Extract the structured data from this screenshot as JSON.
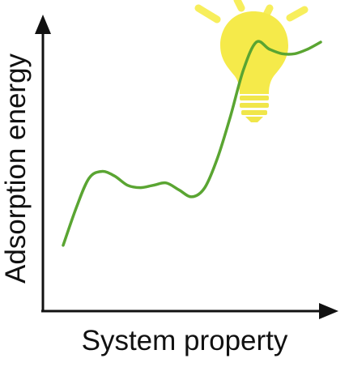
{
  "chart_data": {
    "type": "line",
    "title": "",
    "xlabel": "System property",
    "ylabel": "Adsorption energy",
    "grid": false,
    "legend": "none",
    "axis_tick_labels": false,
    "series": [
      {
        "color": "#5aa532",
        "x": [
          0.0,
          0.05,
          0.1,
          0.15,
          0.2,
          0.25,
          0.3,
          0.35,
          0.4,
          0.45,
          0.5,
          0.55,
          0.6,
          0.65,
          0.7,
          0.75,
          0.8,
          0.85,
          0.9,
          0.95,
          1.0
        ],
        "y": [
          0.12,
          0.28,
          0.41,
          0.44,
          0.42,
          0.38,
          0.37,
          0.38,
          0.39,
          0.36,
          0.33,
          0.37,
          0.5,
          0.68,
          0.88,
          1.0,
          0.97,
          0.95,
          0.95,
          0.97,
          1.0
        ]
      }
    ]
  },
  "decoration": {
    "icon": "lightbulb-icon",
    "bulb_color": "#f5ea4a",
    "ray_color": "#f7ee5c",
    "base_color": "#f0e64a"
  },
  "colors": {
    "axis": "#111111",
    "curve": "#5aa532"
  }
}
